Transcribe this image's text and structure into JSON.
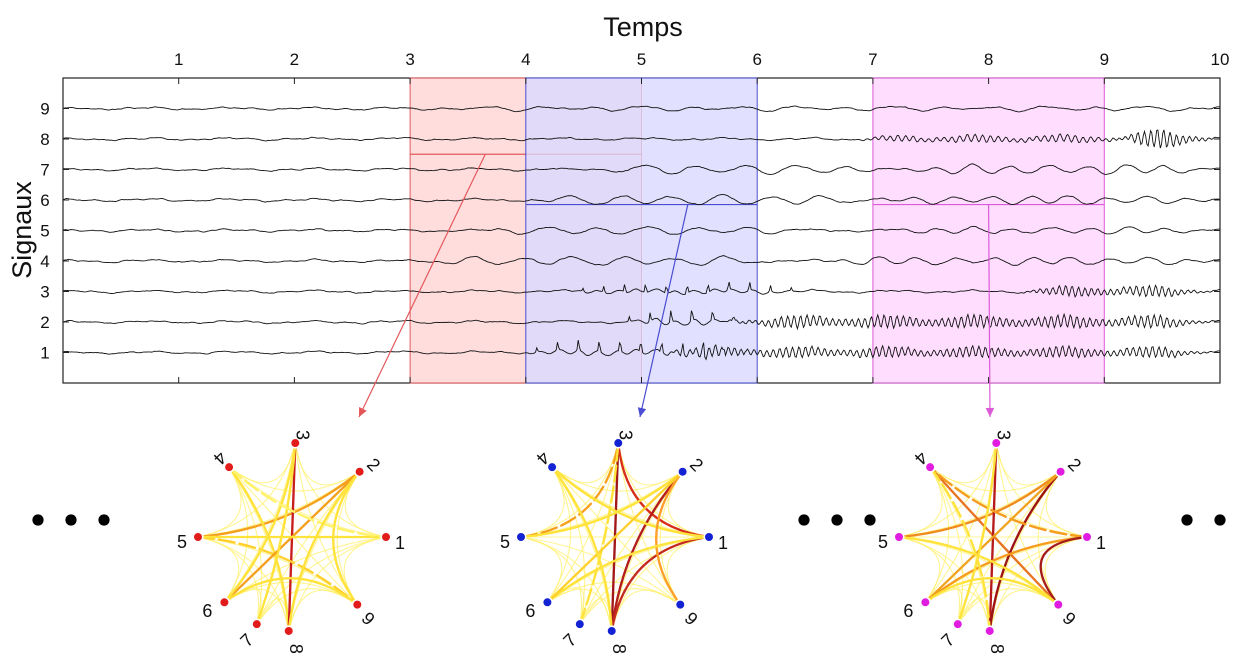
{
  "chart_data": {
    "type": "line",
    "title": "",
    "xlabel": "Temps",
    "ylabel": "Signaux",
    "xlim": [
      0,
      10
    ],
    "ylim": [
      0,
      10
    ],
    "x_ticks": [
      "1",
      "2",
      "3",
      "4",
      "5",
      "6",
      "7",
      "8",
      "9",
      "10"
    ],
    "y_ticks": [
      "1",
      "2",
      "3",
      "4",
      "5",
      "6",
      "7",
      "8",
      "9"
    ],
    "grid": false,
    "legend": "none",
    "series": [
      {
        "id": 1,
        "seed": 11,
        "baseline": 1,
        "events": [
          {
            "start": 3.9,
            "end": 6.0,
            "amp": 0.16,
            "kind": "spikes"
          },
          {
            "start": 5.1,
            "end": 10.0,
            "amp": 0.18,
            "kind": "fast"
          }
        ]
      },
      {
        "id": 2,
        "seed": 22,
        "baseline": 2,
        "events": [
          {
            "start": 4.7,
            "end": 6.0,
            "amp": 0.18,
            "kind": "spikes"
          },
          {
            "start": 5.7,
            "end": 10.0,
            "amp": 0.21,
            "kind": "fast"
          }
        ]
      },
      {
        "id": 3,
        "seed": 33,
        "baseline": 3,
        "events": [
          {
            "start": 4.3,
            "end": 6.5,
            "amp": 0.12,
            "kind": "spikes"
          },
          {
            "start": 8.2,
            "end": 10.0,
            "amp": 0.18,
            "kind": "fast"
          }
        ]
      },
      {
        "id": 4,
        "seed": 44,
        "baseline": 4,
        "events": [
          {
            "start": 3.1,
            "end": 6.2,
            "amp": 0.12,
            "kind": "slow"
          },
          {
            "start": 6.5,
            "end": 10.0,
            "amp": 0.1,
            "kind": "slow"
          }
        ]
      },
      {
        "id": 5,
        "seed": 55,
        "baseline": 5,
        "events": [
          {
            "start": 3.6,
            "end": 6.5,
            "amp": 0.1,
            "kind": "slow"
          },
          {
            "start": 7.0,
            "end": 10.0,
            "amp": 0.08,
            "kind": "slow"
          }
        ]
      },
      {
        "id": 6,
        "seed": 66,
        "baseline": 6,
        "events": [
          {
            "start": 4.0,
            "end": 7.0,
            "amp": 0.13,
            "kind": "slow"
          },
          {
            "start": 7.0,
            "end": 10.0,
            "amp": 0.11,
            "kind": "slow"
          }
        ]
      },
      {
        "id": 7,
        "seed": 77,
        "baseline": 7,
        "events": [
          {
            "start": 4.5,
            "end": 7.2,
            "amp": 0.12,
            "kind": "slow"
          },
          {
            "start": 7.2,
            "end": 10.0,
            "amp": 0.12,
            "kind": "slow"
          }
        ]
      },
      {
        "id": 8,
        "seed": 88,
        "baseline": 8,
        "events": [
          {
            "start": 6.8,
            "end": 9.4,
            "amp": 0.12,
            "kind": "fast"
          },
          {
            "start": 9.0,
            "end": 10.0,
            "amp": 0.34,
            "kind": "fast"
          }
        ]
      },
      {
        "id": 9,
        "seed": 99,
        "baseline": 9,
        "events": [
          {
            "start": 3.0,
            "end": 10.0,
            "amp": 0.05,
            "kind": "slow"
          }
        ]
      }
    ],
    "windows": [
      {
        "xstart": 3,
        "xend": 5,
        "fill": "#ffd3d3",
        "stroke": "#e4585b",
        "line_y": 7.5,
        "arrow_color": "#e4585b",
        "arrow_start_x": 3.65,
        "arrow_start_y": 7.5,
        "arrow_target": 0
      },
      {
        "xstart": 4,
        "xend": 6,
        "fill": "#d9d8ff",
        "stroke": "#4a4cd1",
        "line_y": 5.85,
        "arrow_color": "#4a4cd1",
        "arrow_start_x": 5.4,
        "arrow_start_y": 5.85,
        "arrow_target": 1
      },
      {
        "xstart": 7,
        "xend": 9,
        "fill": "#ffd4ff",
        "stroke": "#dc5ad8",
        "line_y": 5.85,
        "arrow_color": "#dc5ad8",
        "arrow_start_x": 8.0,
        "arrow_start_y": 5.85,
        "arrow_target": 2
      }
    ],
    "networks": [
      {
        "node_color": "#e21b1b",
        "edges": [
          [
            5,
            2,
            "#f4a01d"
          ],
          [
            4,
            8,
            "#ffe23a"
          ],
          [
            3,
            8,
            "#c91d1d"
          ],
          [
            2,
            9,
            "#ffe23a"
          ],
          [
            5,
            9,
            "#ffd02c"
          ],
          [
            6,
            2,
            "#f4a01d"
          ],
          [
            6,
            3,
            "#ffe23a"
          ],
          [
            5,
            1,
            "#ffe23a"
          ],
          [
            7,
            3,
            "#ffe23a"
          ],
          [
            4,
            1,
            "#fff36b"
          ],
          [
            6,
            9,
            "#ffe23a"
          ],
          [
            2,
            8,
            "#ffe23a"
          ]
        ]
      },
      {
        "node_color": "#1322d3",
        "edges": [
          [
            3,
            8,
            "#a21717"
          ],
          [
            3,
            1,
            "#d82d1b"
          ],
          [
            2,
            8,
            "#b31c1c"
          ],
          [
            1,
            8,
            "#c52b1f"
          ],
          [
            5,
            3,
            "#f6a01d"
          ],
          [
            4,
            1,
            "#ffe23a"
          ],
          [
            2,
            9,
            "#ff9f2a"
          ],
          [
            6,
            1,
            "#ffe23a"
          ],
          [
            5,
            2,
            "#ffe23a"
          ],
          [
            7,
            3,
            "#ffe23a"
          ],
          [
            6,
            2,
            "#ffd02c"
          ],
          [
            4,
            8,
            "#ffe23a"
          ]
        ]
      },
      {
        "node_color": "#e01ce0",
        "edges": [
          [
            5,
            2,
            "#f08c1e"
          ],
          [
            4,
            9,
            "#e77421"
          ],
          [
            3,
            8,
            "#b61a1a"
          ],
          [
            2,
            8,
            "#9c1313"
          ],
          [
            1,
            4,
            "#f59b1e"
          ],
          [
            1,
            6,
            "#f59b1e"
          ],
          [
            1,
            9,
            "#a61b1b"
          ],
          [
            6,
            2,
            "#f0a31f"
          ],
          [
            5,
            9,
            "#ffe23a"
          ],
          [
            4,
            8,
            "#ffe23a"
          ],
          [
            7,
            3,
            "#ffe23a"
          ],
          [
            6,
            9,
            "#ffe23a"
          ]
        ]
      }
    ]
  }
}
